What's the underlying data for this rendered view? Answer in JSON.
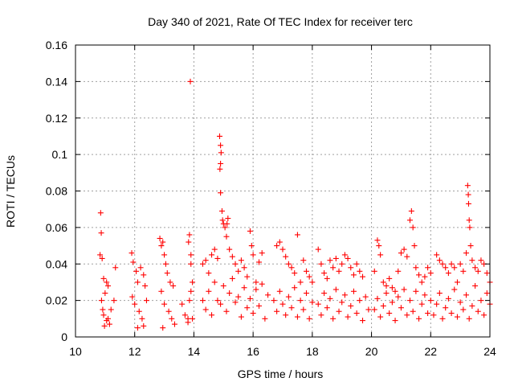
{
  "chart_data": {
    "type": "scatter",
    "title": "Day 340 of 2021, Rate Of TEC Index for receiver terc",
    "xlabel": "GPS time / hours",
    "ylabel": "ROTI / TECUs",
    "xlim": [
      10,
      24
    ],
    "ylim": [
      0,
      0.16
    ],
    "xticks": [
      "10",
      "12",
      "14",
      "16",
      "18",
      "20",
      "22",
      "24"
    ],
    "yticks": [
      "0",
      "0.02",
      "0.04",
      "0.06",
      "0.08",
      "0.1",
      "0.12",
      "0.14",
      "0.16"
    ],
    "grid": true,
    "marker": "plus",
    "color": "#ff0000",
    "series": [
      {
        "values": [
          [
            10.85,
            0.068
          ],
          [
            10.87,
            0.057
          ],
          [
            10.83,
            0.045
          ],
          [
            10.9,
            0.043
          ],
          [
            10.95,
            0.032
          ],
          [
            11.05,
            0.03
          ],
          [
            11.1,
            0.028
          ],
          [
            11.0,
            0.024
          ],
          [
            10.88,
            0.02
          ],
          [
            10.92,
            0.015
          ],
          [
            10.95,
            0.012
          ],
          [
            11.05,
            0.009
          ],
          [
            11.15,
            0.007
          ],
          [
            11.3,
            0.02
          ],
          [
            11.35,
            0.038
          ],
          [
            11.2,
            0.015
          ],
          [
            11.1,
            0.01
          ],
          [
            10.98,
            0.006
          ],
          [
            11.9,
            0.046
          ],
          [
            11.95,
            0.041
          ],
          [
            12.05,
            0.036
          ],
          [
            12.1,
            0.03
          ],
          [
            12.2,
            0.038
          ],
          [
            12.3,
            0.034
          ],
          [
            12.35,
            0.028
          ],
          [
            11.92,
            0.022
          ],
          [
            12.0,
            0.018
          ],
          [
            12.15,
            0.014
          ],
          [
            12.25,
            0.01
          ],
          [
            12.3,
            0.006
          ],
          [
            12.1,
            0.005
          ],
          [
            12.4,
            0.02
          ],
          [
            12.85,
            0.054
          ],
          [
            12.9,
            0.05
          ],
          [
            12.95,
            0.052
          ],
          [
            13.0,
            0.045
          ],
          [
            13.05,
            0.04
          ],
          [
            13.1,
            0.035
          ],
          [
            13.2,
            0.03
          ],
          [
            13.3,
            0.028
          ],
          [
            12.9,
            0.025
          ],
          [
            13.0,
            0.018
          ],
          [
            13.15,
            0.014
          ],
          [
            13.25,
            0.01
          ],
          [
            13.35,
            0.007
          ],
          [
            12.95,
            0.005
          ],
          [
            13.6,
            0.018
          ],
          [
            13.7,
            0.012
          ],
          [
            13.8,
            0.01
          ],
          [
            13.88,
            0.14
          ],
          [
            13.85,
            0.056
          ],
          [
            13.82,
            0.052
          ],
          [
            13.9,
            0.045
          ],
          [
            13.9,
            0.04
          ],
          [
            13.95,
            0.03
          ],
          [
            13.9,
            0.025
          ],
          [
            13.85,
            0.02
          ],
          [
            13.95,
            0.01
          ],
          [
            13.8,
            0.008
          ],
          [
            14.3,
            0.04
          ],
          [
            14.4,
            0.042
          ],
          [
            14.5,
            0.035
          ],
          [
            14.6,
            0.045
          ],
          [
            14.7,
            0.048
          ],
          [
            14.8,
            0.043
          ],
          [
            14.87,
            0.11
          ],
          [
            14.9,
            0.105
          ],
          [
            14.92,
            0.101
          ],
          [
            14.9,
            0.095
          ],
          [
            14.88,
            0.092
          ],
          [
            14.9,
            0.079
          ],
          [
            14.95,
            0.069
          ],
          [
            14.97,
            0.064
          ],
          [
            15.0,
            0.062
          ],
          [
            15.05,
            0.06
          ],
          [
            15.1,
            0.055
          ],
          [
            15.15,
            0.065
          ],
          [
            15.12,
            0.062
          ],
          [
            15.2,
            0.048
          ],
          [
            15.3,
            0.044
          ],
          [
            15.4,
            0.04
          ],
          [
            15.5,
            0.036
          ],
          [
            15.6,
            0.042
          ],
          [
            15.7,
            0.038
          ],
          [
            15.8,
            0.033
          ],
          [
            15.9,
            0.058
          ],
          [
            15.95,
            0.05
          ],
          [
            16.0,
            0.045
          ],
          [
            16.1,
            0.03
          ],
          [
            16.2,
            0.041
          ],
          [
            16.3,
            0.046
          ],
          [
            14.3,
            0.02
          ],
          [
            14.4,
            0.015
          ],
          [
            14.5,
            0.025
          ],
          [
            14.6,
            0.012
          ],
          [
            14.7,
            0.03
          ],
          [
            14.8,
            0.02
          ],
          [
            14.9,
            0.018
          ],
          [
            15.0,
            0.028
          ],
          [
            15.1,
            0.014
          ],
          [
            15.2,
            0.024
          ],
          [
            15.3,
            0.032
          ],
          [
            15.4,
            0.019
          ],
          [
            15.5,
            0.022
          ],
          [
            15.6,
            0.011
          ],
          [
            15.7,
            0.027
          ],
          [
            15.8,
            0.016
          ],
          [
            15.9,
            0.021
          ],
          [
            16.0,
            0.013
          ],
          [
            16.1,
            0.026
          ],
          [
            16.2,
            0.017
          ],
          [
            16.3,
            0.029
          ],
          [
            16.4,
            0.01
          ],
          [
            16.5,
            0.023
          ],
          [
            16.8,
            0.05
          ],
          [
            16.9,
            0.052
          ],
          [
            17.0,
            0.048
          ],
          [
            17.1,
            0.044
          ],
          [
            17.2,
            0.04
          ],
          [
            17.3,
            0.038
          ],
          [
            17.4,
            0.035
          ],
          [
            17.5,
            0.056
          ],
          [
            17.6,
            0.03
          ],
          [
            17.7,
            0.042
          ],
          [
            17.8,
            0.036
          ],
          [
            17.9,
            0.033
          ],
          [
            18.0,
            0.03
          ],
          [
            16.7,
            0.02
          ],
          [
            16.8,
            0.014
          ],
          [
            16.9,
            0.025
          ],
          [
            17.0,
            0.018
          ],
          [
            17.1,
            0.012
          ],
          [
            17.2,
            0.022
          ],
          [
            17.3,
            0.016
          ],
          [
            17.4,
            0.027
          ],
          [
            17.5,
            0.011
          ],
          [
            17.6,
            0.02
          ],
          [
            17.7,
            0.015
          ],
          [
            17.8,
            0.024
          ],
          [
            17.9,
            0.01
          ],
          [
            18.0,
            0.019
          ],
          [
            18.2,
            0.048
          ],
          [
            18.3,
            0.04
          ],
          [
            18.4,
            0.035
          ],
          [
            18.5,
            0.032
          ],
          [
            18.6,
            0.042
          ],
          [
            18.7,
            0.038
          ],
          [
            18.8,
            0.043
          ],
          [
            18.9,
            0.036
          ],
          [
            19.0,
            0.04
          ],
          [
            19.1,
            0.045
          ],
          [
            19.2,
            0.043
          ],
          [
            19.3,
            0.038
          ],
          [
            19.4,
            0.034
          ],
          [
            19.5,
            0.04
          ],
          [
            19.6,
            0.036
          ],
          [
            19.7,
            0.033
          ],
          [
            18.2,
            0.018
          ],
          [
            18.3,
            0.012
          ],
          [
            18.4,
            0.024
          ],
          [
            18.5,
            0.016
          ],
          [
            18.6,
            0.021
          ],
          [
            18.7,
            0.01
          ],
          [
            18.8,
            0.026
          ],
          [
            18.9,
            0.014
          ],
          [
            19.0,
            0.019
          ],
          [
            19.1,
            0.023
          ],
          [
            19.2,
            0.011
          ],
          [
            19.3,
            0.017
          ],
          [
            19.4,
            0.025
          ],
          [
            19.5,
            0.013
          ],
          [
            19.6,
            0.02
          ],
          [
            19.7,
            0.009
          ],
          [
            19.8,
            0.022
          ],
          [
            19.9,
            0.015
          ],
          [
            20.2,
            0.053
          ],
          [
            20.25,
            0.05
          ],
          [
            20.3,
            0.045
          ],
          [
            20.1,
            0.036
          ],
          [
            20.4,
            0.03
          ],
          [
            20.5,
            0.028
          ],
          [
            20.6,
            0.032
          ],
          [
            20.7,
            0.027
          ],
          [
            20.8,
            0.025
          ],
          [
            20.9,
            0.036
          ],
          [
            21.0,
            0.046
          ],
          [
            21.1,
            0.048
          ],
          [
            21.2,
            0.044
          ],
          [
            21.3,
            0.064
          ],
          [
            21.35,
            0.069
          ],
          [
            21.4,
            0.06
          ],
          [
            21.45,
            0.05
          ],
          [
            21.5,
            0.038
          ],
          [
            21.6,
            0.034
          ],
          [
            21.7,
            0.03
          ],
          [
            21.8,
            0.033
          ],
          [
            21.9,
            0.038
          ],
          [
            22.0,
            0.035
          ],
          [
            20.1,
            0.015
          ],
          [
            20.2,
            0.021
          ],
          [
            20.3,
            0.011
          ],
          [
            20.4,
            0.017
          ],
          [
            20.5,
            0.024
          ],
          [
            20.6,
            0.013
          ],
          [
            20.7,
            0.019
          ],
          [
            20.8,
            0.009
          ],
          [
            20.9,
            0.022
          ],
          [
            21.0,
            0.016
          ],
          [
            21.1,
            0.026
          ],
          [
            21.2,
            0.012
          ],
          [
            21.3,
            0.02
          ],
          [
            21.4,
            0.014
          ],
          [
            21.5,
            0.025
          ],
          [
            21.6,
            0.01
          ],
          [
            21.7,
            0.018
          ],
          [
            21.8,
            0.023
          ],
          [
            21.9,
            0.013
          ],
          [
            22.0,
            0.02
          ],
          [
            22.2,
            0.045
          ],
          [
            22.3,
            0.042
          ],
          [
            22.4,
            0.04
          ],
          [
            22.5,
            0.038
          ],
          [
            22.6,
            0.035
          ],
          [
            22.7,
            0.04
          ],
          [
            22.8,
            0.038
          ],
          [
            22.9,
            0.03
          ],
          [
            23.0,
            0.04
          ],
          [
            23.1,
            0.036
          ],
          [
            23.2,
            0.046
          ],
          [
            23.25,
            0.083
          ],
          [
            23.27,
            0.078
          ],
          [
            23.28,
            0.073
          ],
          [
            23.3,
            0.064
          ],
          [
            23.32,
            0.06
          ],
          [
            23.35,
            0.05
          ],
          [
            23.4,
            0.042
          ],
          [
            23.5,
            0.038
          ],
          [
            23.6,
            0.036
          ],
          [
            23.7,
            0.042
          ],
          [
            23.8,
            0.04
          ],
          [
            23.9,
            0.035
          ],
          [
            24.0,
            0.03
          ],
          [
            22.1,
            0.012
          ],
          [
            22.2,
            0.018
          ],
          [
            22.3,
            0.024
          ],
          [
            22.4,
            0.01
          ],
          [
            22.5,
            0.016
          ],
          [
            22.6,
            0.021
          ],
          [
            22.7,
            0.013
          ],
          [
            22.8,
            0.026
          ],
          [
            22.9,
            0.011
          ],
          [
            23.0,
            0.019
          ],
          [
            23.1,
            0.015
          ],
          [
            23.2,
            0.023
          ],
          [
            23.3,
            0.01
          ],
          [
            23.4,
            0.017
          ],
          [
            23.5,
            0.028
          ],
          [
            23.6,
            0.014
          ],
          [
            23.7,
            0.02
          ],
          [
            23.8,
            0.012
          ],
          [
            23.9,
            0.024
          ],
          [
            24.0,
            0.018
          ]
        ]
      }
    ]
  }
}
